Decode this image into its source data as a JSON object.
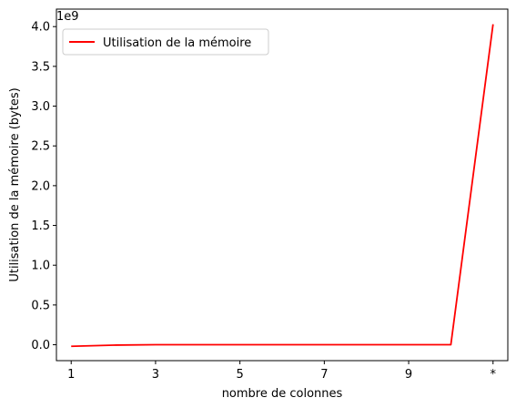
{
  "chart_data": {
    "type": "line",
    "title": "",
    "xlabel": "nombre de colonnes",
    "ylabel": "Utilisation de la mémoire (bytes)",
    "y_offset_label": "1e9",
    "x_ticks": [
      "1",
      "3",
      "5",
      "7",
      "9",
      "*"
    ],
    "y_ticks": [
      "0.0",
      "0.5",
      "1.0",
      "1.5",
      "2.0",
      "2.5",
      "3.0",
      "3.5",
      "4.0"
    ],
    "xlim": [
      0.65,
      11.35
    ],
    "ylim": [
      -0.2,
      4.22
    ],
    "legend": {
      "position": "top-left"
    },
    "series": [
      {
        "name": "Utilisation de la mémoire",
        "color": "#ff0000",
        "x": [
          1,
          2,
          3,
          4,
          5,
          6,
          7,
          8,
          9,
          10,
          11
        ],
        "y": [
          -0.02,
          -0.005,
          0.0,
          0.0,
          0.0,
          0.0,
          0.0,
          0.0,
          0.0,
          0.0,
          4.03
        ]
      }
    ]
  }
}
